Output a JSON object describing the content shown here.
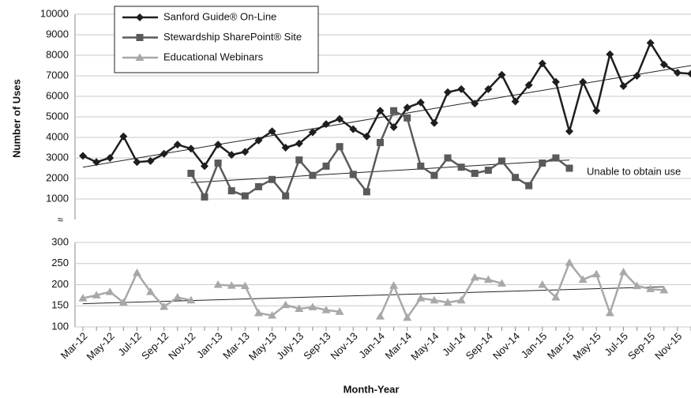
{
  "chart_data": {
    "type": "line",
    "x_label": "Month-Year",
    "y_label": "Number of Uses",
    "axis_break_label": "≈",
    "annotation": "Unable to obtain use",
    "categories": [
      "Mar-12",
      null,
      "May-12",
      null,
      "Jul-12",
      null,
      "Sep-12",
      null,
      "Nov-12",
      null,
      "Jan-13",
      null,
      "Mar-13",
      null,
      "May-13",
      null,
      "July-13",
      null,
      "Sep-13",
      null,
      "Nov-13",
      null,
      "Jan-14",
      null,
      "Mar-14",
      null,
      "May-14",
      null,
      "Jul-14",
      null,
      "Sep-14",
      null,
      "Nov-14",
      null,
      "Jan-15",
      null,
      "Mar-15",
      null,
      "May-15",
      null,
      "Jul-15",
      null,
      "Sep-15",
      null,
      "Nov-15",
      null
    ],
    "ylim": [
      0,
      10000
    ],
    "yticks": [
      1000,
      2000,
      3000,
      4000,
      5000,
      6000,
      7000,
      8000,
      9000,
      10000
    ],
    "y2lim": [
      100,
      300
    ],
    "y2ticks": [
      100,
      150,
      200,
      250,
      300
    ],
    "grid": true,
    "legend": "top-left",
    "series": [
      {
        "name": "Sanford Guide® On-Line",
        "color": "#1e1e1e",
        "marker": "diamond",
        "trend": [
          2550,
          7500
        ],
        "values": [
          3100,
          2800,
          3000,
          4050,
          2800,
          2850,
          3200,
          3650,
          3450,
          2600,
          3650,
          3150,
          3300,
          3850,
          4300,
          3500,
          3700,
          4250,
          4650,
          4900,
          4400,
          4050,
          5300,
          4500,
          5450,
          5700,
          4700,
          6200,
          6350,
          5650,
          6350,
          7050,
          5750,
          6550,
          7600,
          6700,
          4300,
          6700,
          5300,
          8050,
          6500,
          7000,
          8600,
          7550,
          7150,
          7100
        ]
      },
      {
        "name": "Stewardship SharePoint® Site",
        "color": "#5a5a5a",
        "marker": "square",
        "trend": [
          1800,
          2900
        ],
        "values": [
          null,
          null,
          null,
          null,
          null,
          null,
          null,
          null,
          2250,
          1100,
          2750,
          1400,
          1150,
          1600,
          1950,
          1150,
          2900,
          2150,
          2600,
          3550,
          2200,
          1350,
          3750,
          5300,
          4950,
          2600,
          2150,
          3000,
          2550,
          2250,
          2400,
          2850,
          2050,
          1650,
          2750,
          3000,
          2500,
          null,
          null,
          null,
          null,
          null,
          null,
          null,
          null,
          null
        ]
      },
      {
        "name": "Educational Webinars",
        "color": "#a8a8a8",
        "marker": "triangle",
        "axis": "y2",
        "trend": [
          155,
          195
        ],
        "values": [
          168,
          175,
          183,
          158,
          228,
          183,
          148,
          170,
          163,
          null,
          200,
          198,
          197,
          133,
          127,
          152,
          143,
          147,
          140,
          136,
          null,
          null,
          125,
          198,
          122,
          168,
          163,
          158,
          163,
          217,
          212,
          203,
          null,
          null,
          200,
          170,
          252,
          212,
          225,
          133,
          230,
          197,
          190,
          187,
          null,
          null
        ]
      }
    ]
  }
}
